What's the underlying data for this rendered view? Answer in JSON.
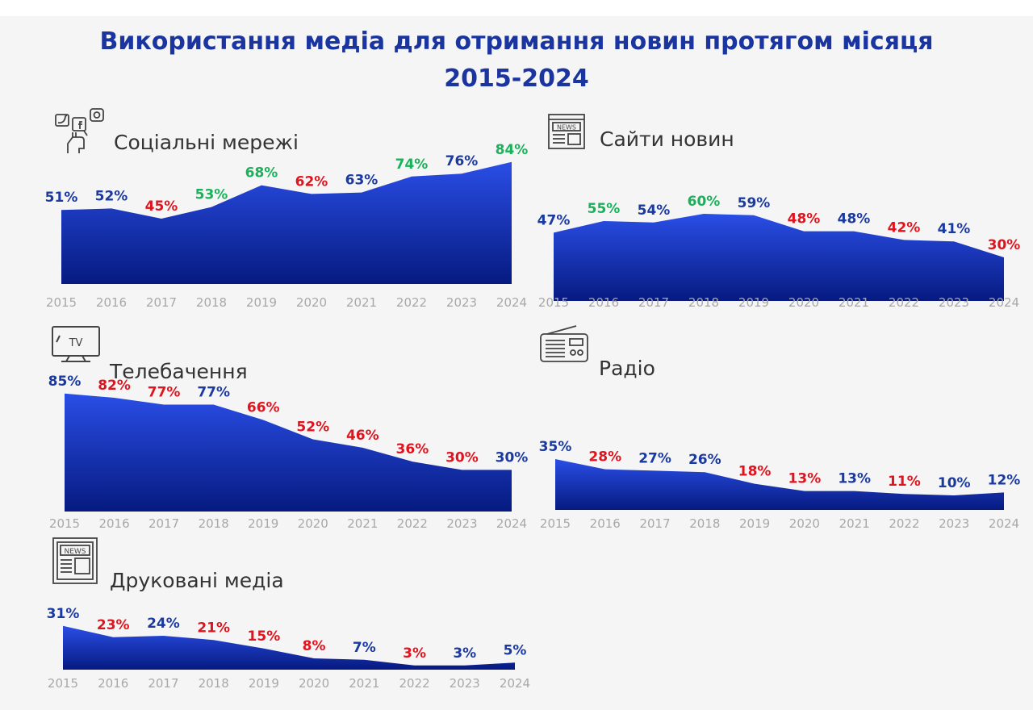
{
  "page": {
    "title_line1": "Використання медіа для отримання новин протягом місяця",
    "title_line2": "2015-2024"
  },
  "colors": {
    "rise": "#18b25a",
    "fall": "#e0141e",
    "neutral": "#1a3aa0",
    "area_top": "#2a4ee6",
    "area_bottom": "#061a80",
    "axis_label": "#a8a8a8",
    "title": "#1a34a0"
  },
  "chart_data": [
    {
      "type": "area",
      "title": "Соціальні мережі",
      "icon": "social-media-icon",
      "categories": [
        "2015",
        "2016",
        "2017",
        "2018",
        "2019",
        "2020",
        "2021",
        "2022",
        "2023",
        "2024"
      ],
      "values": [
        51,
        52,
        45,
        53,
        68,
        62,
        63,
        74,
        76,
        84
      ],
      "labels": [
        "51%",
        "52%",
        "45%",
        "53%",
        "68%",
        "62%",
        "63%",
        "74%",
        "76%",
        "84%"
      ],
      "label_tone": [
        "neutral",
        "neutral",
        "fall",
        "rise",
        "rise",
        "fall",
        "neutral",
        "rise",
        "neutral",
        "rise"
      ]
    },
    {
      "type": "area",
      "title": "Сайти новин",
      "icon": "news-site-icon",
      "categories": [
        "2015",
        "2016",
        "2017",
        "2018",
        "2019",
        "2020",
        "2021",
        "2022",
        "2023",
        "2024"
      ],
      "values": [
        47,
        55,
        54,
        60,
        59,
        48,
        48,
        42,
        41,
        30
      ],
      "labels": [
        "47%",
        "55%",
        "54%",
        "60%",
        "59%",
        "48%",
        "48%",
        "42%",
        "41%",
        "30%"
      ],
      "label_tone": [
        "neutral",
        "rise",
        "neutral",
        "rise",
        "neutral",
        "fall",
        "neutral",
        "fall",
        "neutral",
        "fall"
      ]
    },
    {
      "type": "area",
      "title": "Телебачення",
      "icon": "tv-icon",
      "categories": [
        "2015",
        "2016",
        "2017",
        "2018",
        "2019",
        "2020",
        "2021",
        "2022",
        "2023",
        "2024"
      ],
      "values": [
        85,
        82,
        77,
        77,
        66,
        52,
        46,
        36,
        30,
        30
      ],
      "labels": [
        "85%",
        "82%",
        "77%",
        "77%",
        "66%",
        "52%",
        "46%",
        "36%",
        "30%",
        "30%"
      ],
      "label_tone": [
        "neutral",
        "fall",
        "fall",
        "neutral",
        "fall",
        "fall",
        "fall",
        "fall",
        "fall",
        "neutral"
      ]
    },
    {
      "type": "area",
      "title": "Радіо",
      "icon": "radio-icon",
      "categories": [
        "2015",
        "2016",
        "2017",
        "2018",
        "2019",
        "2020",
        "2021",
        "2022",
        "2023",
        "2024"
      ],
      "values": [
        35,
        28,
        27,
        26,
        18,
        13,
        13,
        11,
        10,
        12
      ],
      "labels": [
        "35%",
        "28%",
        "27%",
        "26%",
        "18%",
        "13%",
        "13%",
        "11%",
        "10%",
        "12%"
      ],
      "label_tone": [
        "neutral",
        "fall",
        "neutral",
        "neutral",
        "fall",
        "fall",
        "neutral",
        "fall",
        "neutral",
        "neutral"
      ]
    },
    {
      "type": "area",
      "title": "Друковані медіа",
      "icon": "newspaper-icon",
      "categories": [
        "2015",
        "2016",
        "2017",
        "2018",
        "2019",
        "2020",
        "2021",
        "2022",
        "2023",
        "2024"
      ],
      "values": [
        31,
        23,
        24,
        21,
        15,
        8,
        7,
        3,
        3,
        5
      ],
      "labels": [
        "31%",
        "23%",
        "24%",
        "21%",
        "15%",
        "8%",
        "7%",
        "3%",
        "3%",
        "5%"
      ],
      "label_tone": [
        "neutral",
        "fall",
        "neutral",
        "fall",
        "fall",
        "fall",
        "neutral",
        "fall",
        "neutral",
        "neutral"
      ]
    }
  ]
}
